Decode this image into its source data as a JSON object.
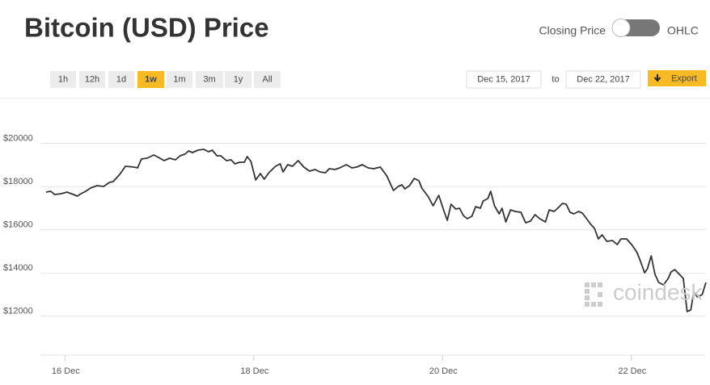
{
  "title": "Bitcoin (USD) Price",
  "toggle": {
    "left": "Closing Price",
    "right": "OHLC"
  },
  "range_buttons": [
    "1h",
    "12h",
    "1d",
    "1w",
    "1m",
    "3m",
    "1y",
    "All"
  ],
  "selected_range": "1w",
  "date_range": {
    "from": "Dec 15, 2017",
    "separator": "to",
    "to": "Dec 22, 2017"
  },
  "export": "Export",
  "watermark": "coindesk",
  "chart_data": {
    "type": "line",
    "color": "#333333",
    "grid": true,
    "x": [
      15.8,
      15.85,
      15.89,
      15.96,
      16.02,
      16.09,
      16.13,
      16.17,
      16.22,
      16.27,
      16.34,
      16.41,
      16.47,
      16.51,
      16.58,
      16.64,
      16.73,
      16.77,
      16.81,
      16.87,
      16.94,
      16.99,
      17.05,
      17.11,
      17.17,
      17.22,
      17.27,
      17.31,
      17.35,
      17.41,
      17.47,
      17.52,
      17.56,
      17.61,
      17.65,
      17.71,
      17.76,
      17.8,
      17.85,
      17.9,
      17.93,
      17.97,
      18.02,
      18.07,
      18.11,
      18.16,
      18.23,
      18.28,
      18.31,
      18.36,
      18.41,
      18.47,
      18.53,
      18.59,
      18.65,
      18.7,
      18.76,
      18.8,
      18.86,
      18.91,
      18.98,
      19.04,
      19.09,
      19.15,
      19.21,
      19.27,
      19.34,
      19.41,
      19.48,
      19.53,
      19.57,
      19.6,
      19.65,
      19.7,
      19.75,
      19.78,
      19.85,
      19.9,
      19.96,
      20.01,
      20.05,
      20.09,
      20.14,
      20.18,
      20.22,
      20.26,
      20.31,
      20.35,
      20.4,
      20.43,
      20.48,
      20.51,
      20.55,
      20.6,
      20.63,
      20.67,
      20.72,
      20.77,
      20.83,
      20.88,
      20.93,
      20.98,
      21.03,
      21.09,
      21.13,
      21.18,
      21.22,
      21.27,
      21.31,
      21.35,
      21.39,
      21.44,
      21.48,
      21.52,
      21.57,
      21.61,
      21.65,
      21.69,
      21.74,
      21.8,
      21.85,
      21.89,
      21.95,
      22.01,
      22.06,
      22.1,
      22.14,
      22.17,
      22.21,
      22.25,
      22.29,
      22.34,
      22.39,
      22.42,
      22.46,
      22.51,
      22.55,
      22.59,
      22.63,
      22.66,
      22.7,
      22.75,
      22.79
    ],
    "values": [
      17742,
      17779,
      17630,
      17667,
      17742,
      17630,
      17555,
      17667,
      17779,
      17928,
      18040,
      18003,
      18189,
      18227,
      18563,
      18936,
      18899,
      18861,
      19272,
      19309,
      19459,
      19347,
      19197,
      19309,
      19235,
      19421,
      19496,
      19645,
      19571,
      19683,
      19720,
      19608,
      19683,
      19421,
      19421,
      19197,
      19235,
      19048,
      19123,
      19123,
      19384,
      19160,
      18301,
      18600,
      18339,
      18637,
      18936,
      19048,
      18675,
      19011,
      18936,
      19197,
      18899,
      18712,
      18787,
      18675,
      18637,
      18824,
      18787,
      18861,
      19011,
      18861,
      18899,
      19011,
      18861,
      18824,
      18899,
      18488,
      17816,
      18003,
      18077,
      17891,
      18040,
      18376,
      18264,
      17928,
      17517,
      17107,
      17592,
      16920,
      16435,
      17181,
      16957,
      16995,
      16659,
      16510,
      16622,
      17069,
      16995,
      17331,
      17443,
      17779,
      17107,
      16734,
      16995,
      16360,
      16920,
      16846,
      16808,
      16323,
      16398,
      16697,
      16510,
      16360,
      16920,
      16846,
      16995,
      17219,
      17181,
      16808,
      16734,
      16846,
      16771,
      16547,
      16248,
      16062,
      15576,
      15763,
      15464,
      15502,
      15315,
      15576,
      15576,
      15278,
      14942,
      14494,
      14009,
      14195,
      14793,
      13934,
      13561,
      13449,
      13748,
      14046,
      14158,
      13934,
      13748,
      12217,
      12292,
      13113,
      12889,
      13001,
      13561
    ],
    "xlim": [
      15.8,
      22.79
    ],
    "xticks": [
      {
        "value": 16,
        "label": "16 Dec"
      },
      {
        "value": 18,
        "label": "18 Dec"
      },
      {
        "value": 20,
        "label": "20 Dec"
      },
      {
        "value": 22,
        "label": "22 Dec"
      }
    ],
    "ylim": [
      10200,
      21400
    ],
    "yticks": [
      {
        "value": 12000,
        "label": "$12000"
      },
      {
        "value": 14000,
        "label": "$14000"
      },
      {
        "value": 16000,
        "label": "$16000"
      },
      {
        "value": 18000,
        "label": "$18000"
      },
      {
        "value": 20000,
        "label": "$20000"
      }
    ]
  }
}
